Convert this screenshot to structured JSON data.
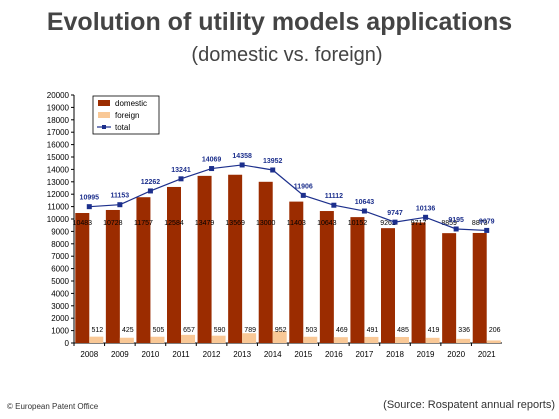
{
  "header": {
    "title": "Evolution of utility models applications",
    "subtitle": "(domestic vs. foreign)"
  },
  "footer": {
    "copyright": "© European Patent Office",
    "source": "(Source: Rospatent annual reports)"
  },
  "colors": {
    "domestic": "#9b2c00",
    "foreign": "#f9c896",
    "total": "#1c2f8c"
  },
  "chart_data": {
    "type": "bar",
    "categories": [
      "2008",
      "2009",
      "2010",
      "2011",
      "2012",
      "2013",
      "2014",
      "2015",
      "2016",
      "2017",
      "2018",
      "2019",
      "2020",
      "2021"
    ],
    "series": [
      {
        "name": "domestic",
        "values": [
          10483,
          10728,
          11757,
          12584,
          13479,
          13569,
          13000,
          11403,
          10643,
          10152,
          9262,
          9717,
          8859,
          8873
        ]
      },
      {
        "name": "foreign",
        "values": [
          512,
          425,
          505,
          657,
          590,
          789,
          952,
          503,
          469,
          491,
          485,
          419,
          336,
          206
        ]
      },
      {
        "name": "total",
        "values": [
          10995,
          11153,
          12262,
          13241,
          14069,
          14358,
          13952,
          11906,
          11112,
          10643,
          9747,
          10136,
          9195,
          9079
        ]
      }
    ],
    "ylim": [
      0,
      20000
    ],
    "yticks": [
      "0",
      "1000",
      "2000",
      "3000",
      "4000",
      "5000",
      "6000",
      "7000",
      "8000",
      "9000",
      "10000",
      "11000",
      "12000",
      "13000",
      "14000",
      "15000",
      "16000",
      "17000",
      "18000",
      "19000",
      "20000"
    ],
    "legend": "top-left",
    "grid": false
  }
}
